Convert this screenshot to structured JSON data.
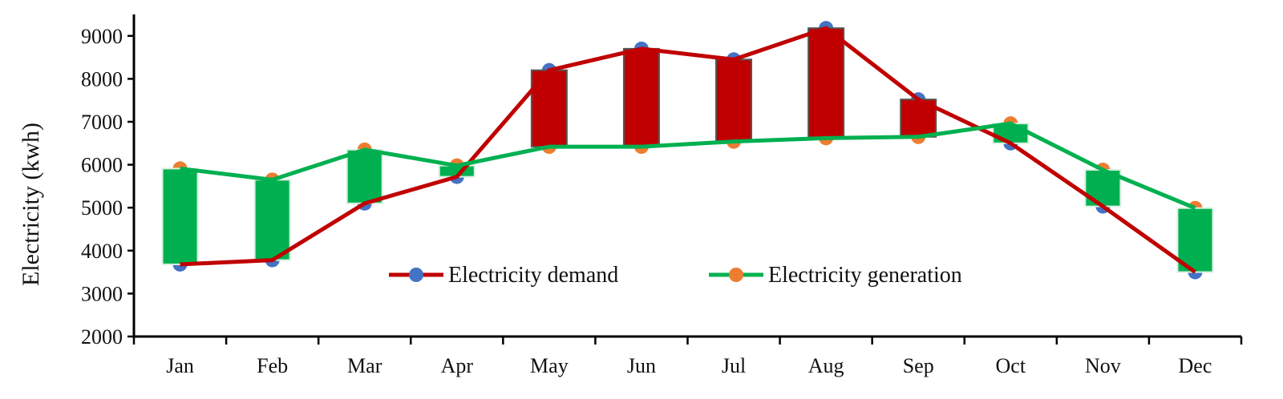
{
  "chart_data": {
    "type": "line",
    "ylabel": "Electricity (kwh)",
    "xlabel": "",
    "ylim": [
      2000,
      9500
    ],
    "yticks": [
      2000,
      3000,
      4000,
      5000,
      6000,
      7000,
      8000,
      9000
    ],
    "categories": [
      "Jan",
      "Feb",
      "Mar",
      "Apr",
      "May",
      "Jun",
      "Jul",
      "Aug",
      "Sep",
      "Oct",
      "Nov",
      "Dec"
    ],
    "series": [
      {
        "name": "Electricity demand",
        "values": [
          3680,
          3780,
          5100,
          5720,
          8200,
          8700,
          8450,
          9180,
          7520,
          6500,
          5030,
          3500
        ],
        "line_color": "#c00000",
        "marker_color": "#4472c4"
      },
      {
        "name": "Electricity generation",
        "values": [
          5910,
          5650,
          6350,
          5980,
          6420,
          6420,
          6540,
          6620,
          6650,
          6960,
          5880,
          4990
        ],
        "line_color": "#00b050",
        "marker_color": "#ed7d31"
      }
    ],
    "difference_bars": {
      "surplus_color": "#00b050",
      "deficit_color": "#c00000"
    },
    "legend_position": "inside-bottom-center",
    "grid": false
  }
}
